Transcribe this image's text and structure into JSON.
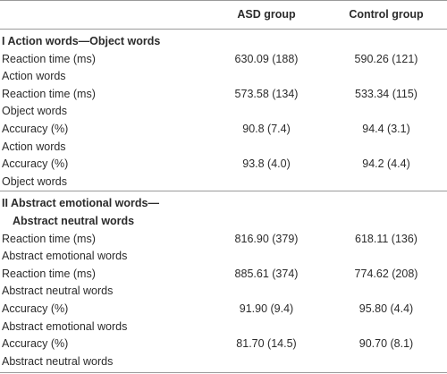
{
  "header": {
    "columns": [
      "ASD group",
      "Control group"
    ]
  },
  "sections": [
    {
      "title_lines": [
        "I Action words—Object words"
      ],
      "rows": [
        {
          "measure": "Reaction time (ms)",
          "condition": "Action words",
          "asd": "630.09 (188)",
          "control": "590.26 (121)"
        },
        {
          "measure": "Reaction time (ms)",
          "condition": "Object words",
          "asd": "573.58 (134)",
          "control": "533.34 (115)"
        },
        {
          "measure": "Accuracy (%)",
          "condition": "Action words",
          "asd": "90.8 (7.4)",
          "control": "94.4 (3.1)"
        },
        {
          "measure": "Accuracy (%)",
          "condition": "Object words",
          "asd": "93.8 (4.0)",
          "control": "94.2 (4.4)"
        }
      ]
    },
    {
      "title_lines": [
        "II Abstract emotional words—",
        "Abstract neutral words"
      ],
      "rows": [
        {
          "measure": "Reaction time (ms)",
          "condition": "Abstract emotional words",
          "asd": "816.90 (379)",
          "control": "618.11 (136)"
        },
        {
          "measure": "Reaction time (ms)",
          "condition": "Abstract neutral words",
          "asd": "885.61 (374)",
          "control": "774.62 (208)"
        },
        {
          "measure": "Accuracy (%)",
          "condition": "Abstract emotional words",
          "asd": "91.90 (9.4)",
          "control": "95.80 (4.4)"
        },
        {
          "measure": "Accuracy (%)",
          "condition": "Abstract neutral words",
          "asd": "81.70 (14.5)",
          "control": "90.70 (8.1)"
        }
      ]
    }
  ]
}
